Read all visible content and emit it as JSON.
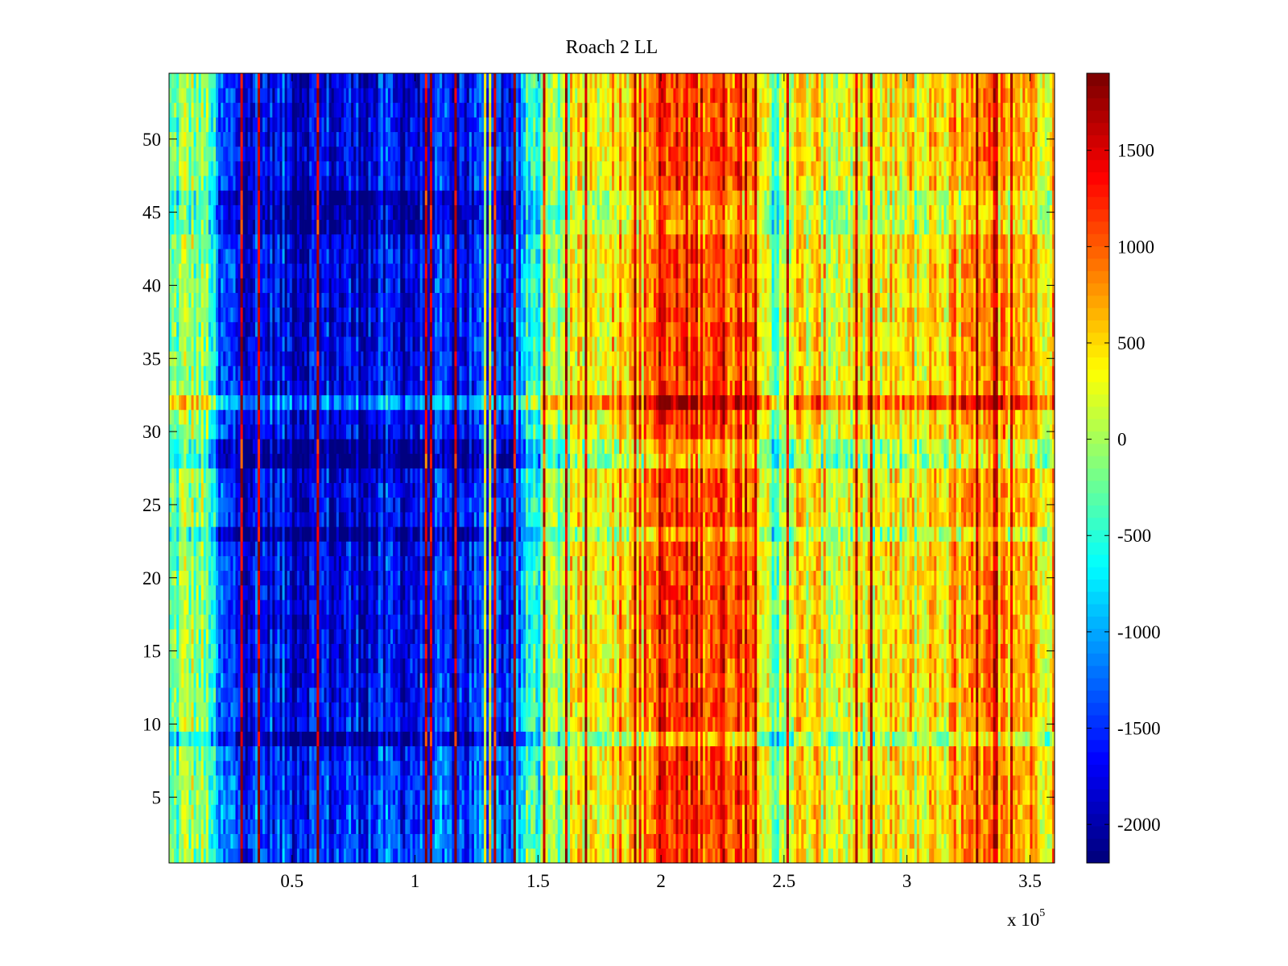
{
  "chart_data": {
    "type": "heatmap",
    "title": "Roach 2 LL",
    "xlabel": "",
    "ylabel": "",
    "x_multiplier_label": "x 10",
    "x_multiplier_exponent": "5",
    "xlim": [
      0,
      360000
    ],
    "ylim": [
      0.5,
      54.5
    ],
    "x_ticks": [
      0.5,
      1,
      1.5,
      2,
      2.5,
      3,
      3.5
    ],
    "x_tick_labels": [
      "0.5",
      "1",
      "1.5",
      "2",
      "2.5",
      "3",
      "3.5"
    ],
    "y_ticks": [
      5,
      10,
      15,
      20,
      25,
      30,
      35,
      40,
      45,
      50
    ],
    "y_tick_labels": [
      "5",
      "10",
      "15",
      "20",
      "25",
      "30",
      "35",
      "40",
      "45",
      "50"
    ],
    "n_rows": 54,
    "colormap": "jet",
    "clim": [
      -2200,
      1900
    ],
    "colorbar": {
      "ticks": [
        1500,
        1000,
        500,
        0,
        -500,
        -1000,
        -1500,
        -2000
      ],
      "tick_labels": [
        "1500",
        "1000",
        "500",
        "0",
        "-500",
        "-1000",
        "-1500",
        "-2000"
      ]
    },
    "column_profile": {
      "x": [
        0,
        8000,
        17000,
        20000,
        40000,
        60000,
        90000,
        120000,
        140000,
        148000,
        160000,
        175000,
        195000,
        215000,
        230000,
        240000,
        247000,
        255000,
        270000,
        300000,
        320000,
        340000,
        360000
      ],
      "value": [
        -400,
        0,
        -300,
        -1500,
        -1700,
        -1800,
        -1750,
        -1650,
        -1500,
        -500,
        100,
        500,
        950,
        1250,
        1150,
        900,
        -300,
        400,
        300,
        350,
        600,
        700,
        650
      ]
    },
    "row_effects": {
      "rows": [
        9,
        23,
        28,
        29,
        32,
        44,
        45,
        46
      ],
      "offsets": [
        -500,
        -400,
        -500,
        -400,
        600,
        -300,
        -300,
        -300
      ]
    },
    "grid": false,
    "legend": "none"
  }
}
